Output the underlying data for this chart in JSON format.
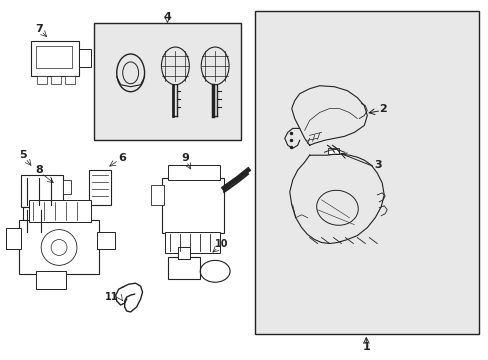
{
  "bg_color": "#ffffff",
  "line_color": "#222222",
  "shaded_bg": "#e8e8e8",
  "fig_width": 4.89,
  "fig_height": 3.6,
  "dpi": 100
}
